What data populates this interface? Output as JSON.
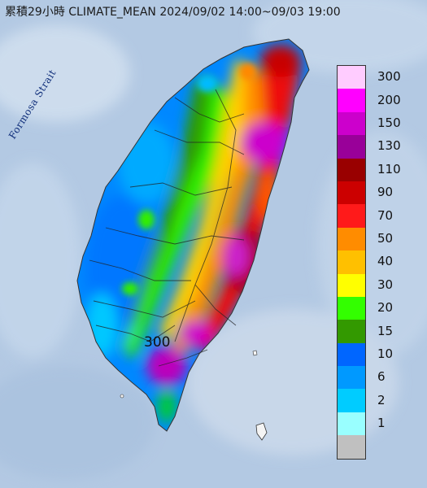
{
  "header": {
    "title": "累積29小時 CLIMATE_MEAN 2024/09/02 14:00~09/03 19:00"
  },
  "map": {
    "sea_label": "Formosa Strait",
    "station_value": "300"
  },
  "legend": {
    "items": [
      {
        "label": "300",
        "color": "#ffccff"
      },
      {
        "label": "200",
        "color": "#ff00ff"
      },
      {
        "label": "150",
        "color": "#cc00cc"
      },
      {
        "label": "130",
        "color": "#990099"
      },
      {
        "label": "110",
        "color": "#990000"
      },
      {
        "label": "90",
        "color": "#cc0000"
      },
      {
        "label": "70",
        "color": "#ff1a1a"
      },
      {
        "label": "50",
        "color": "#ff8c00"
      },
      {
        "label": "40",
        "color": "#ffc000"
      },
      {
        "label": "30",
        "color": "#ffff00"
      },
      {
        "label": "20",
        "color": "#33ff00"
      },
      {
        "label": "15",
        "color": "#339900"
      },
      {
        "label": "10",
        "color": "#0066ff"
      },
      {
        "label": "6",
        "color": "#0099ff"
      },
      {
        "label": "2",
        "color": "#00ccff"
      },
      {
        "label": "1",
        "color": "#99ffff"
      },
      {
        "label": "",
        "color": "#c0c0c0"
      }
    ]
  }
}
